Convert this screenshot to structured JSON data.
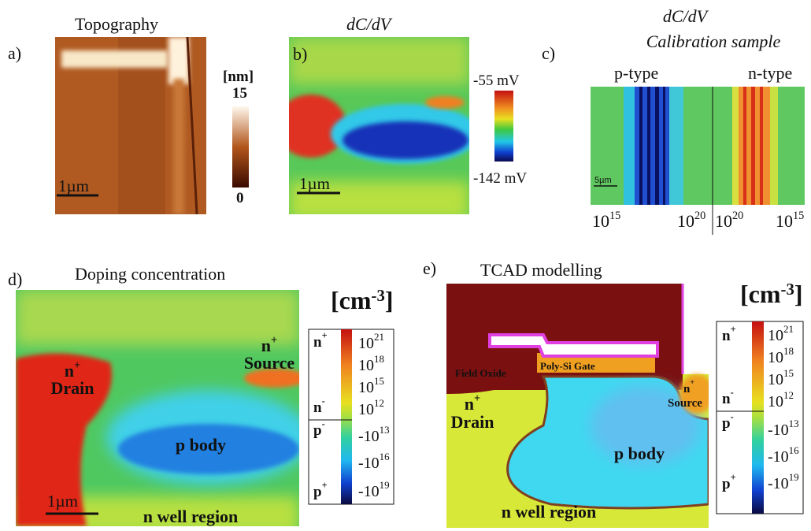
{
  "panels": [
    {
      "label": "a)",
      "title": "Topography",
      "scale_bar": "1µm",
      "colorbar": {
        "unit": "[nm]",
        "max": "15",
        "min": "0"
      }
    },
    {
      "label": "b)",
      "title": "dC/dV",
      "scale_bar": "1µm",
      "colorbar": {
        "max": "-55 mV",
        "min": "-142 mV"
      }
    },
    {
      "label": "c)",
      "title": "dC/dV",
      "subtitle": "Calibration sample",
      "regions": [
        "p-type",
        "n-type"
      ],
      "scale_bar": "5µm",
      "axis_labels": [
        {
          "base": "10",
          "exp": "15"
        },
        {
          "base": "10",
          "exp": "20"
        },
        {
          "base": "10",
          "exp": "20"
        },
        {
          "base": "10",
          "exp": "15"
        }
      ]
    },
    {
      "label": "d)",
      "title": "Doping concentration",
      "unit": {
        "base": "[cm",
        "exp": "-3",
        "tail": "]"
      },
      "source": {
        "base": "n",
        "exp": "+",
        "name": "Source"
      },
      "drain": {
        "base": "n",
        "exp": "+",
        "name": "Drain"
      },
      "body": "p body",
      "well": "n well region",
      "scale_bar": "1µm"
    },
    {
      "label": "e)",
      "title": "TCAD modelling",
      "unit": {
        "base": "[cm",
        "exp": "-3",
        "tail": "]"
      },
      "oxide": "Field Oxide",
      "gate": "Poly-Si Gate",
      "source": {
        "base": "n",
        "exp": "+",
        "name": "Source"
      },
      "drain": {
        "base": "n",
        "exp": "+",
        "name": "Drain"
      },
      "body": "p body",
      "well": "n well region"
    }
  ],
  "doping_colorbar": {
    "carriers": [
      {
        "base": "n",
        "exp": "+"
      },
      {
        "base": "n",
        "exp": "-"
      },
      {
        "base": "p",
        "exp": "-"
      },
      {
        "base": "p",
        "exp": "+"
      }
    ],
    "ticks": [
      {
        "base": "10",
        "exp": "21"
      },
      {
        "base": "10",
        "exp": "18"
      },
      {
        "base": "10",
        "exp": "15"
      },
      {
        "base": "10",
        "exp": "12"
      },
      {
        "base": "-10",
        "exp": "13"
      },
      {
        "base": "-10",
        "exp": "16"
      },
      {
        "base": "-10",
        "exp": "19"
      }
    ]
  }
}
